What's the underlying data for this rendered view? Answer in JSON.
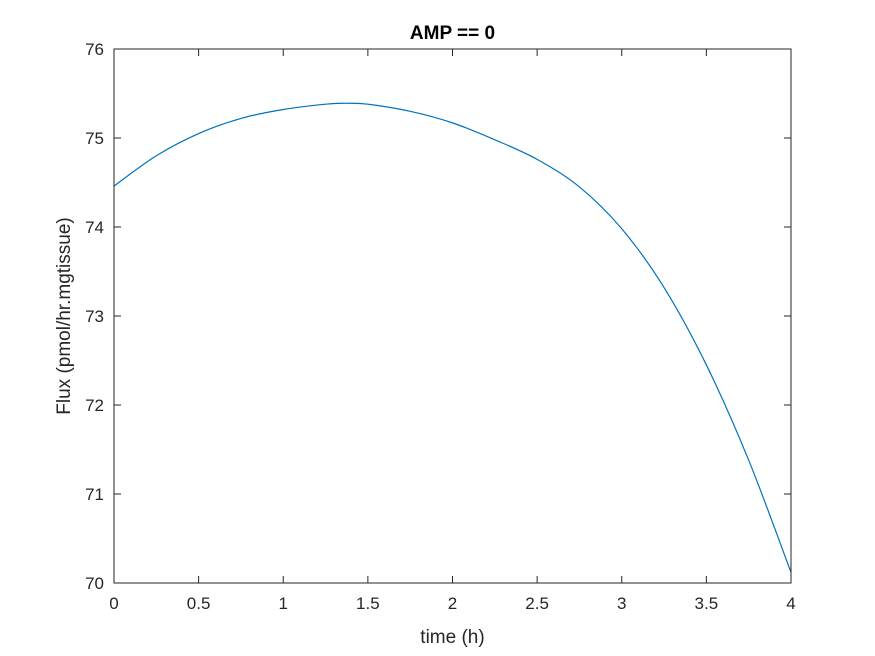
{
  "chart_data": {
    "type": "line",
    "title": "AMP == 0",
    "xlabel": "time (h)",
    "ylabel": "Flux (pmol/hr.mgtissue)",
    "xlim": [
      0,
      4
    ],
    "ylim": [
      70,
      76
    ],
    "x_ticks": [
      0,
      0.5,
      1,
      1.5,
      2,
      2.5,
      3,
      3.5,
      4
    ],
    "x_tick_labels": [
      "0",
      "0.5",
      "1",
      "1.5",
      "2",
      "2.5",
      "3",
      "3.5",
      "4"
    ],
    "y_ticks": [
      70,
      71,
      72,
      73,
      74,
      75,
      76
    ],
    "y_tick_labels": [
      "70",
      "71",
      "72",
      "73",
      "74",
      "75",
      "76"
    ],
    "grid": false,
    "line_color": "#0072bd",
    "series": [
      {
        "x": [
          0,
          0.25,
          0.5,
          0.75,
          1.0,
          1.25,
          1.37,
          1.5,
          1.75,
          2.0,
          2.25,
          2.5,
          2.75,
          3.0,
          3.25,
          3.5,
          3.75,
          4.0
        ],
        "y": [
          74.46,
          74.8,
          75.05,
          75.22,
          75.32,
          75.38,
          75.39,
          75.38,
          75.3,
          75.17,
          74.98,
          74.76,
          74.45,
          73.98,
          73.32,
          72.45,
          71.38,
          70.12
        ]
      }
    ]
  }
}
